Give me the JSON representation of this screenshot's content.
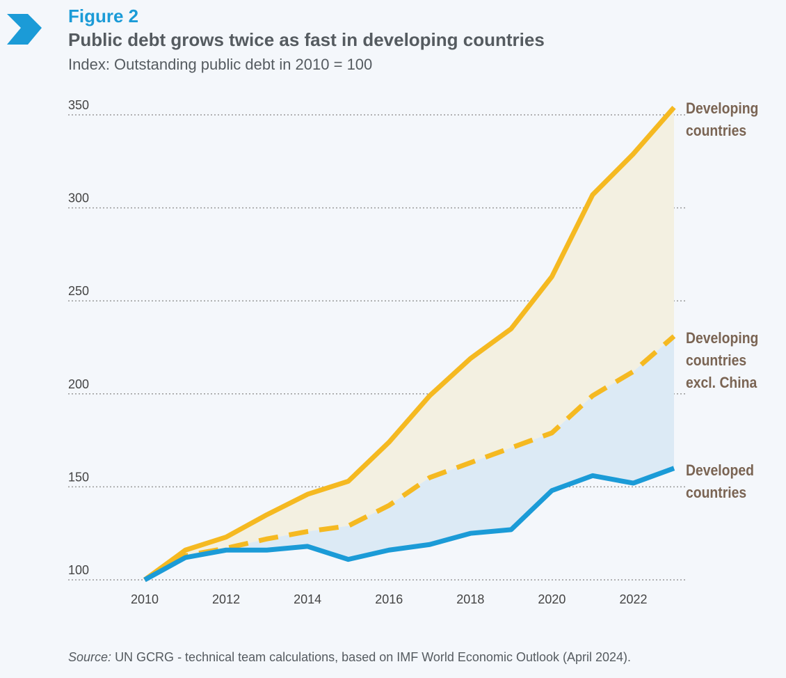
{
  "chart_data": {
    "type": "line",
    "figure_label": "Figure 2",
    "title": "Public debt grows twice as fast in developing countries",
    "subtitle": "Index: Outstanding public debt in 2010 = 100",
    "source_label": "Source:",
    "source": "UN GCRG - technical team calculations, based on IMF World Economic Outlook (April 2024).",
    "x": [
      2010,
      2011,
      2012,
      2013,
      2014,
      2015,
      2016,
      2017,
      2018,
      2019,
      2020,
      2021,
      2022,
      2023
    ],
    "series": [
      {
        "name": "Developing countries",
        "color": "#f5b921",
        "dash": false,
        "values": [
          100,
          116,
          123,
          135,
          146,
          153,
          174,
          199,
          219,
          235,
          263,
          307,
          329,
          354
        ]
      },
      {
        "name": "Developing countries excl. China",
        "color": "#f5b921",
        "dash": true,
        "values": [
          100,
          113,
          117,
          122,
          126,
          129,
          140,
          155,
          163,
          171,
          179,
          199,
          212,
          231
        ]
      },
      {
        "name": "Developed countries",
        "color": "#1b9bd7",
        "dash": false,
        "values": [
          100,
          112,
          116,
          116,
          118,
          111,
          116,
          119,
          125,
          127,
          148,
          156,
          152,
          160
        ]
      }
    ],
    "band_colors": [
      "#f3f0e1",
      "#dceaf5"
    ],
    "xlim": [
      2010,
      2023
    ],
    "xticks": [
      2010,
      2012,
      2014,
      2016,
      2018,
      2020,
      2022
    ],
    "ylim": [
      100,
      350
    ],
    "yticks": [
      100,
      150,
      200,
      250,
      300,
      350
    ],
    "grid": true
  }
}
